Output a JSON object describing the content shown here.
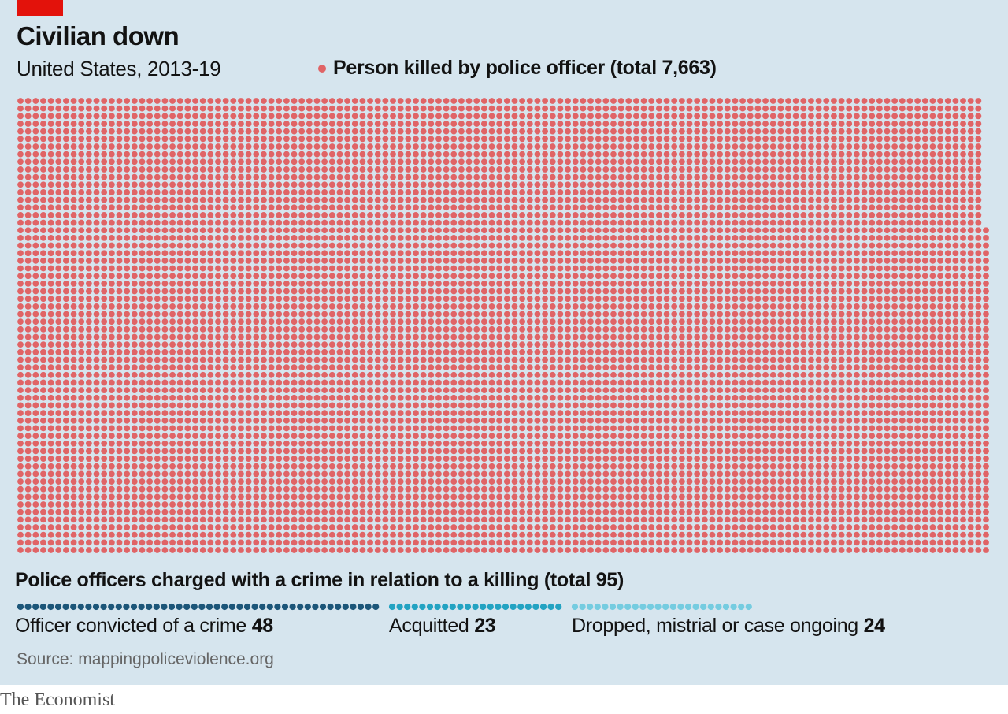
{
  "title": "Civilian down",
  "subtitle": "United States, 2013-19",
  "legend": {
    "label": "Person killed by police officer (total 7,663)",
    "color": "#e06466"
  },
  "charged": {
    "heading": "Police officers charged with a crime in relation to a killing (total 95)",
    "outcomes": [
      {
        "label": "Officer convicted of a crime",
        "value": "48",
        "color": "#1c5679"
      },
      {
        "label": "Acquitted",
        "value": "23",
        "color": "#23a3c2"
      },
      {
        "label": "Dropped, mistrial or case ongoing",
        "value": "24",
        "color": "#75cce0"
      }
    ]
  },
  "source": "Source: mappingpoliceviolence.org",
  "brand": "The Economist",
  "chart_data": {
    "type": "unit dot chart",
    "series": [
      {
        "name": "Person killed by police officer",
        "value": 7663
      },
      {
        "name": "Officer convicted of a crime",
        "value": 48
      },
      {
        "name": "Acquitted",
        "value": 23
      },
      {
        "name": "Dropped, mistrial or case ongoing",
        "value": 24
      }
    ],
    "totals": {
      "killed": 7663,
      "charged": 95
    }
  }
}
